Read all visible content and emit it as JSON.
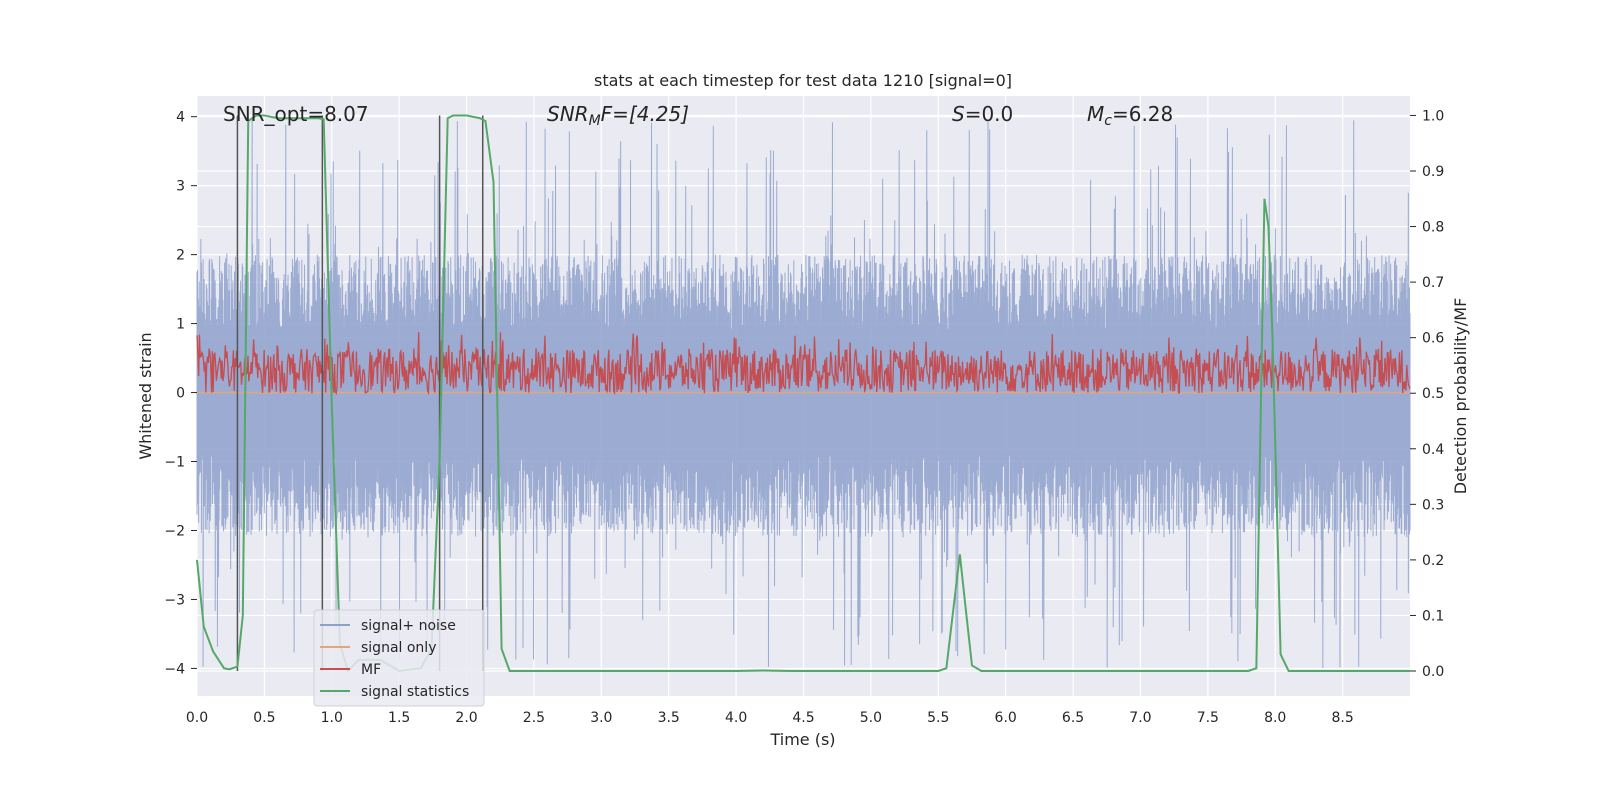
{
  "chart_data": {
    "type": "line",
    "title": "stats at each timestep for test data 1210 [signal=0]",
    "xlabel": "Time (s)",
    "ylabel_left": "Whitened strain",
    "ylabel_right": "Detection probability/MF",
    "xlim": [
      0,
      9.0
    ],
    "ylim_left": [
      -4.4,
      4.3
    ],
    "ylim_right": [
      -0.045,
      1.035
    ],
    "x_ticks": [
      "0.0",
      "0.5",
      "1.0",
      "1.5",
      "2.0",
      "2.5",
      "3.0",
      "3.5",
      "4.0",
      "4.5",
      "5.0",
      "5.5",
      "6.0",
      "6.5",
      "7.0",
      "7.5",
      "8.0",
      "8.5"
    ],
    "y_ticks_left": [
      "4",
      "3",
      "2",
      "1",
      "0",
      "−1",
      "−2",
      "−3",
      "−4"
    ],
    "y_ticks_right": [
      "1.0",
      "0.9",
      "0.8",
      "0.7",
      "0.6",
      "0.5",
      "0.4",
      "0.3",
      "0.2",
      "0.1",
      "0.0"
    ],
    "grid": true,
    "annotations": {
      "snr_opt": "SNR_opt=8.07",
      "snr_mf_sym": "SNR",
      "snr_mf_sub": "M",
      "snr_mf_rest": "F=[4.25]",
      "s_sym": "S",
      "s_rest": "=0.0",
      "mc_sym": "M",
      "mc_sub": "c",
      "mc_rest": "=6.28"
    },
    "legend_position": "lower-left",
    "series": [
      {
        "name": "signal+ noise",
        "color": "#8da0cb",
        "axis": "left",
        "noise_envelope": {
          "upper_typical": 2.0,
          "upper_peak": 4.0,
          "lower_typical": -2.1,
          "lower_peak": -4.0
        }
      },
      {
        "name": "signal only",
        "color": "#e5a47a",
        "axis": "left",
        "x": [
          0,
          9.0
        ],
        "y": [
          0,
          0
        ]
      },
      {
        "name": "MF",
        "color": "#c44e52",
        "axis": "right",
        "band": [
          0.5,
          0.58
        ]
      },
      {
        "name": "signal statistics",
        "color": "#55a868",
        "axis": "right",
        "x": [
          0.0,
          0.05,
          0.12,
          0.2,
          0.24,
          0.3,
          0.34,
          0.38,
          0.44,
          0.5,
          0.6,
          0.8,
          0.9,
          0.94,
          1.0,
          1.06,
          1.12,
          1.2,
          1.36,
          1.5,
          1.66,
          1.74,
          1.8,
          1.86,
          1.9,
          2.0,
          2.1,
          2.14,
          2.2,
          2.26,
          2.32,
          2.5,
          3.0,
          3.5,
          4.0,
          4.2,
          4.4,
          5.0,
          5.5,
          5.56,
          5.66,
          5.7,
          5.75,
          5.82,
          6.0,
          6.5,
          7.0,
          7.5,
          7.8,
          7.86,
          7.92,
          7.95,
          7.98,
          8.04,
          8.1,
          8.3,
          9.0
        ],
        "y": [
          0.2,
          0.08,
          0.035,
          0.005,
          0.003,
          0.008,
          0.1,
          0.99,
          1.0,
          1.0,
          0.995,
          0.995,
          0.995,
          0.993,
          0.48,
          0.05,
          0.0,
          0.02,
          0.02,
          0.0,
          0.005,
          0.04,
          0.38,
          0.995,
          1.0,
          1.0,
          0.995,
          0.99,
          0.88,
          0.04,
          0.0,
          0.0,
          0.0,
          0.0,
          0.0,
          0.001,
          0.0,
          0.0,
          0.0,
          0.005,
          0.21,
          0.12,
          0.01,
          0.0,
          0.0,
          0.0,
          0.0,
          0.0,
          0.0,
          0.005,
          0.85,
          0.8,
          0.6,
          0.03,
          0.0,
          0.0,
          0.0
        ]
      },
      {
        "name": "markers",
        "color": "#555555",
        "axis": "left",
        "x": [
          0.3,
          0.93,
          1.8,
          2.12
        ]
      }
    ]
  }
}
